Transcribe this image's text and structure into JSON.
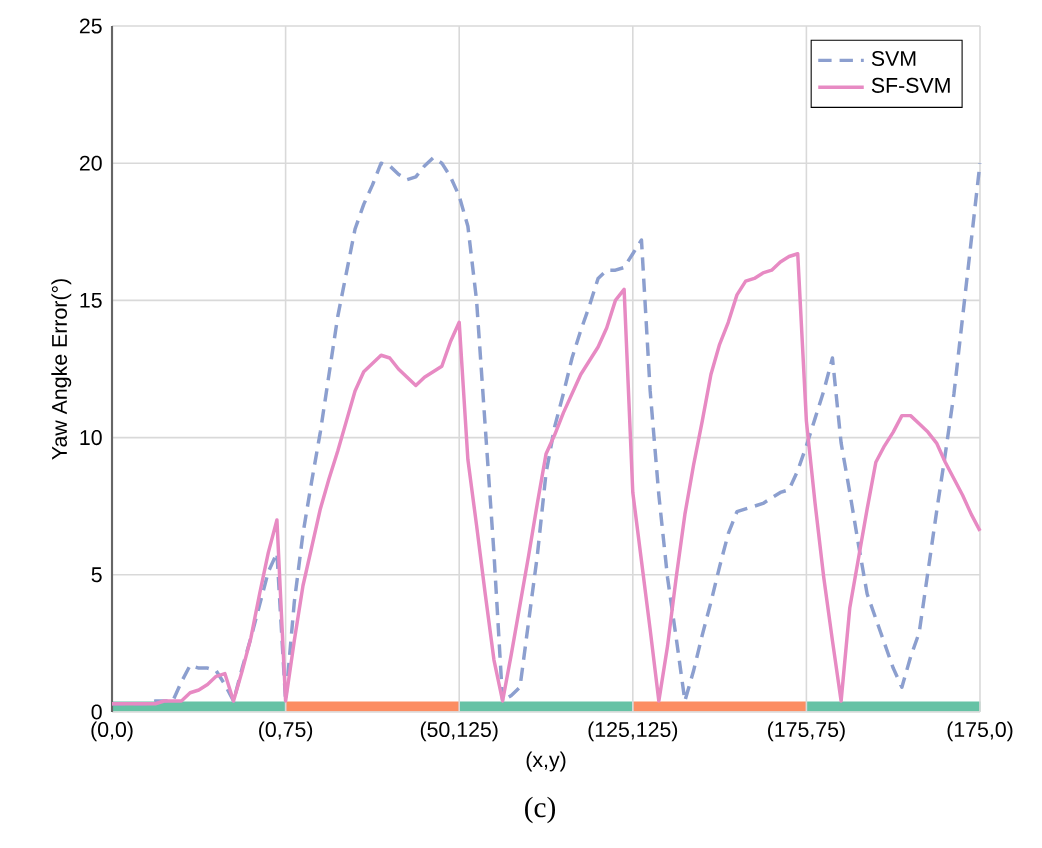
{
  "chart_data": {
    "type": "line",
    "xlabel": "(x,y)",
    "ylabel": "Yaw Angke Error(°)",
    "annotations": [
      "(c)"
    ],
    "categories": [
      "(0,0)",
      null,
      null,
      null,
      null,
      null,
      null,
      null,
      null,
      null,
      null,
      null,
      null,
      null,
      null,
      null,
      null,
      null,
      null,
      null,
      "(0,75)",
      null,
      null,
      null,
      null,
      null,
      null,
      null,
      null,
      null,
      null,
      null,
      null,
      null,
      null,
      null,
      null,
      null,
      null,
      null,
      "(50,125)",
      null,
      null,
      null,
      null,
      null,
      null,
      null,
      null,
      null,
      null,
      null,
      null,
      null,
      null,
      null,
      null,
      null,
      null,
      null,
      "(125,125)",
      null,
      null,
      null,
      null,
      null,
      null,
      null,
      null,
      null,
      null,
      null,
      null,
      null,
      null,
      null,
      null,
      null,
      null,
      null,
      "(175,75)",
      null,
      null,
      null,
      null,
      null,
      null,
      null,
      null,
      null,
      null,
      null,
      null,
      null,
      null,
      null,
      null,
      null,
      null,
      null,
      "(175,0)"
    ],
    "ylim": [
      0,
      25
    ],
    "yticks": [
      0,
      5,
      10,
      15,
      20,
      25
    ],
    "grid": true,
    "legend": "top right",
    "series": [
      {
        "name": "SVM",
        "color": "#8c9fcf",
        "line_style": "dashed",
        "values": [
          0.3,
          0.3,
          0.3,
          0.3,
          0.3,
          0.4,
          0.4,
          0.4,
          1.1,
          1.7,
          1.6,
          1.6,
          1.5,
          1.0,
          0.4,
          1.6,
          2.7,
          3.9,
          5.1,
          5.8,
          0.4,
          4.0,
          6.5,
          8.4,
          10.2,
          12.3,
          14.4,
          16.0,
          17.6,
          18.5,
          19.2,
          20.0,
          19.9,
          19.6,
          19.4,
          19.5,
          19.9,
          20.2,
          20.0,
          19.5,
          18.8,
          17.7,
          15.0,
          10.4,
          5.8,
          0.4,
          0.6,
          0.9,
          3.3,
          5.7,
          8.7,
          10.4,
          11.6,
          12.9,
          13.9,
          14.8,
          15.8,
          16.1,
          16.1,
          16.2,
          16.7,
          17.2,
          11.7,
          7.9,
          4.9,
          2.7,
          0.4,
          1.5,
          2.8,
          4.0,
          5.3,
          6.5,
          7.3,
          7.4,
          7.5,
          7.6,
          7.8,
          8.0,
          8.1,
          8.8,
          9.7,
          10.7,
          11.7,
          12.9,
          9.8,
          8.0,
          6.1,
          4.3,
          3.4,
          2.5,
          1.6,
          0.9,
          2.0,
          2.9,
          5.1,
          7.3,
          9.4,
          11.6,
          14.4,
          17.2,
          20.0
        ]
      },
      {
        "name": "SF-SVM",
        "color": "#e78ac3",
        "line_style": "solid",
        "values": [
          0.3,
          0.3,
          0.3,
          0.3,
          0.3,
          0.3,
          0.4,
          0.4,
          0.4,
          0.7,
          0.8,
          1.0,
          1.3,
          1.4,
          0.4,
          1.5,
          2.7,
          4.3,
          5.8,
          7.0,
          0.4,
          2.6,
          4.6,
          6.0,
          7.4,
          8.5,
          9.5,
          10.6,
          11.7,
          12.4,
          12.7,
          13.0,
          12.9,
          12.5,
          12.2,
          11.9,
          12.2,
          12.4,
          12.6,
          13.5,
          14.2,
          9.2,
          6.8,
          4.3,
          1.9,
          0.4,
          2.1,
          3.9,
          5.7,
          7.6,
          9.4,
          10.1,
          10.9,
          11.6,
          12.3,
          12.8,
          13.3,
          14.0,
          15.0,
          15.4,
          8.0,
          5.5,
          3.0,
          0.4,
          2.4,
          4.9,
          7.2,
          9.0,
          10.6,
          12.3,
          13.4,
          14.2,
          15.2,
          15.7,
          15.8,
          16.0,
          16.1,
          16.4,
          16.6,
          16.7,
          10.6,
          7.6,
          4.9,
          2.6,
          0.4,
          3.8,
          5.6,
          7.4,
          9.1,
          9.7,
          10.2,
          10.8,
          10.8,
          10.5,
          10.2,
          9.8,
          9.1,
          8.5,
          7.9,
          7.2,
          6.6
        ]
      }
    ]
  }
}
